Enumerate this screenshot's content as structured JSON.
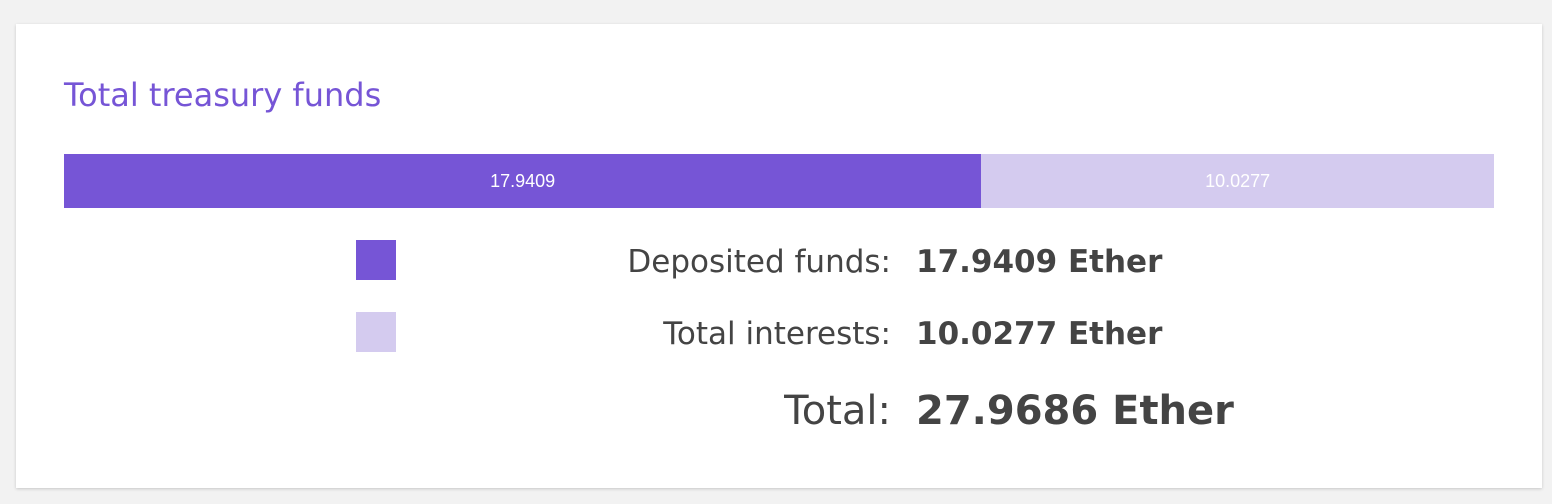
{
  "card": {
    "title": "Total treasury funds"
  },
  "colors": {
    "accent": "#7655d6",
    "deposited": "#7655d6",
    "interests": "#d4cbef",
    "text": "#444444",
    "background": "#f2f2f2"
  },
  "chart_data": {
    "type": "bar",
    "stacked": true,
    "orientation": "horizontal",
    "series": [
      {
        "name": "Deposited funds",
        "values": [
          17.9409
        ],
        "label": "17.9409"
      },
      {
        "name": "Total interests",
        "values": [
          10.0277
        ],
        "label": "10.0277"
      }
    ]
  },
  "legend": {
    "deposited": {
      "label": "Deposited funds:",
      "value": "17.9409 Ether"
    },
    "interests": {
      "label": "Total interests:",
      "value": "10.0277 Ether"
    }
  },
  "total": {
    "label": "Total:",
    "value": "27.9686 Ether"
  }
}
